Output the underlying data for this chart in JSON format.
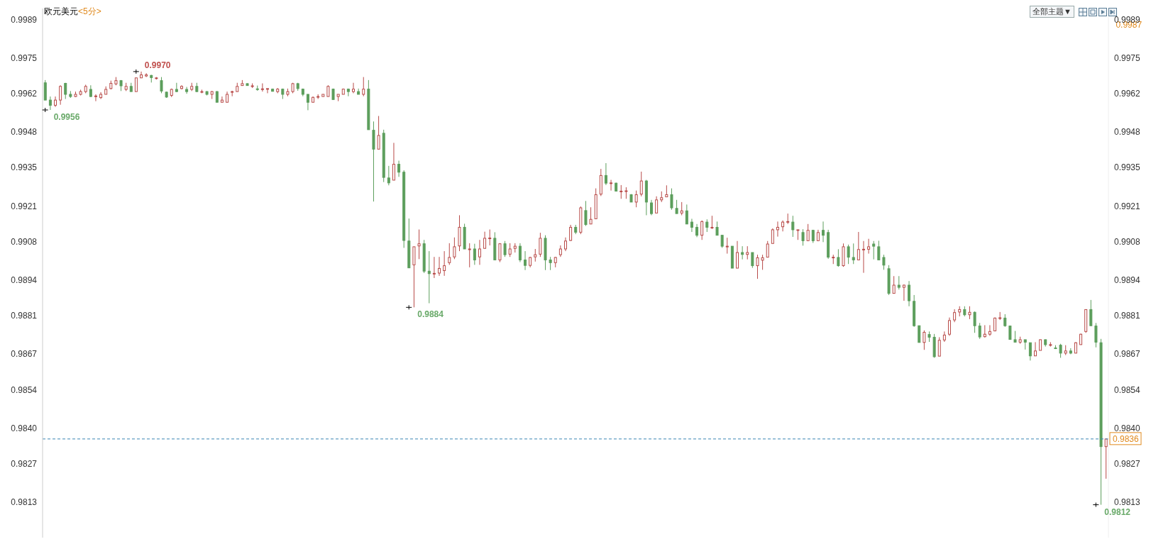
{
  "chart_data": {
    "type": "candlestick",
    "title": "欧元美元",
    "subtitle": "<5分>",
    "categories": [
      null,
      null,
      null,
      null,
      null,
      null,
      null,
      null,
      null,
      null,
      null,
      null,
      null,
      null,
      null,
      null,
      null,
      null,
      null,
      null,
      null,
      null,
      null,
      null,
      null,
      null,
      null,
      null,
      null,
      null,
      null,
      null,
      null,
      null,
      null,
      null,
      null,
      null,
      null,
      null,
      null,
      null,
      null,
      null,
      null,
      null,
      null,
      null,
      null,
      null,
      null,
      null,
      null,
      null,
      null,
      null,
      null,
      null,
      null,
      null,
      null,
      null,
      null,
      null,
      null,
      null,
      null,
      null,
      null,
      null,
      null,
      null,
      null,
      null,
      null,
      null,
      null,
      null,
      null,
      null,
      null,
      null,
      null,
      null,
      null,
      null,
      null,
      null,
      null,
      null,
      null,
      null,
      null,
      null,
      null,
      null,
      null,
      null,
      null,
      null,
      null,
      null,
      null,
      null,
      null,
      null,
      null,
      null,
      null,
      null,
      null,
      null,
      null,
      null,
      null,
      null,
      null,
      null,
      null,
      null,
      null,
      null,
      null,
      null,
      null,
      null,
      null,
      null,
      null,
      null,
      null,
      null,
      null,
      null,
      null,
      null,
      null,
      null,
      null,
      null,
      null,
      null,
      null,
      null,
      null,
      null,
      null,
      null,
      null,
      null,
      null,
      null,
      null,
      null,
      null,
      null,
      null,
      null,
      null,
      null,
      null,
      null,
      null,
      null,
      null,
      null,
      null,
      null,
      null,
      null,
      null,
      null,
      null,
      null,
      null,
      null,
      null,
      null,
      null,
      null,
      null,
      null,
      null,
      null,
      null,
      null,
      null,
      null,
      null,
      null,
      null,
      null,
      null,
      null,
      null,
      null,
      null,
      null,
      null,
      null,
      null,
      null,
      null,
      null,
      null,
      null,
      null,
      null,
      null,
      null,
      null
    ],
    "ohlc": [
      [
        0.99659,
        0.99669,
        0.99596,
        0.99596
      ],
      [
        0.99596,
        0.99609,
        0.9956,
        0.99577
      ],
      [
        0.99577,
        0.99609,
        0.99571,
        0.99596
      ],
      [
        0.99596,
        0.9965,
        0.99579,
        0.99646
      ],
      [
        0.99657,
        0.99659,
        0.996,
        0.99617
      ],
      [
        0.99617,
        0.99629,
        0.99604,
        0.99609
      ],
      [
        0.99609,
        0.99627,
        0.99607,
        0.99617
      ],
      [
        0.99617,
        0.99634,
        0.99613,
        0.99627
      ],
      [
        0.99627,
        0.99652,
        0.99621,
        0.99646
      ],
      [
        0.99635,
        0.9965,
        0.99607,
        0.99609
      ],
      [
        0.99609,
        0.99617,
        0.99592,
        0.99611
      ],
      [
        0.99605,
        0.99625,
        0.996,
        0.99617
      ],
      [
        0.99617,
        0.99646,
        0.99617,
        0.99635
      ],
      [
        0.99638,
        0.99667,
        0.99635,
        0.99657
      ],
      [
        0.99655,
        0.9968,
        0.9965,
        0.99667
      ],
      [
        0.99667,
        0.99669,
        0.99629,
        0.99648
      ],
      [
        0.99635,
        0.99659,
        0.99629,
        0.99646
      ],
      [
        0.99646,
        0.99659,
        0.99627,
        0.99627
      ],
      [
        0.99627,
        0.99677,
        0.99627,
        0.99677
      ],
      [
        0.99677,
        0.997,
        0.99677,
        0.99688
      ],
      [
        0.99684,
        0.99694,
        0.9968,
        0.99688
      ],
      [
        0.99686,
        0.99688,
        0.9966,
        0.99678
      ],
      [
        0.99675,
        0.9968,
        0.99671,
        0.99677
      ],
      [
        0.99667,
        0.9968,
        0.99621,
        0.99629
      ],
      [
        0.99625,
        0.99627,
        0.99604,
        0.99607
      ],
      [
        0.99613,
        0.99638,
        0.99607,
        0.99635
      ],
      [
        0.99635,
        0.99659,
        0.99625,
        0.99627
      ],
      [
        0.99638,
        0.9965,
        0.99635,
        0.99646
      ],
      [
        0.99635,
        0.99644,
        0.99619,
        0.99627
      ],
      [
        0.99635,
        0.99659,
        0.99629,
        0.99646
      ],
      [
        0.99646,
        0.99659,
        0.99625,
        0.99627
      ],
      [
        0.99625,
        0.99634,
        0.99621,
        0.99627
      ],
      [
        0.99627,
        0.99629,
        0.99613,
        0.99617
      ],
      [
        0.99617,
        0.99629,
        0.996,
        0.99627
      ],
      [
        0.99627,
        0.99629,
        0.99588,
        0.99588
      ],
      [
        0.99588,
        0.99609,
        0.99588,
        0.99596
      ],
      [
        0.99588,
        0.99627,
        0.99588,
        0.99617
      ],
      [
        0.99625,
        0.9963,
        0.9961,
        0.99627
      ],
      [
        0.99627,
        0.99659,
        0.99627,
        0.99646
      ],
      [
        0.99649,
        0.99669,
        0.99649,
        0.99656
      ],
      [
        0.99656,
        0.99657,
        0.99649,
        0.99649
      ],
      [
        0.99647,
        0.99657,
        0.9964,
        0.99648
      ],
      [
        0.99637,
        0.99649,
        0.9963,
        0.99636
      ],
      [
        0.99636,
        0.99657,
        0.99627,
        0.99637
      ],
      [
        0.99636,
        0.99638,
        0.99621,
        0.99638
      ],
      [
        0.99636,
        0.99638,
        0.99627,
        0.99628
      ],
      [
        0.99627,
        0.9964,
        0.99621,
        0.99636
      ],
      [
        0.99636,
        0.99638,
        0.996,
        0.99617
      ],
      [
        0.99617,
        0.99638,
        0.9961,
        0.99627
      ],
      [
        0.99627,
        0.99659,
        0.99621,
        0.99656
      ],
      [
        0.99656,
        0.99659,
        0.9963,
        0.99638
      ],
      [
        0.99636,
        0.99638,
        0.9961,
        0.99617
      ],
      [
        0.99617,
        0.99617,
        0.99559,
        0.99588
      ],
      [
        0.99588,
        0.99609,
        0.99588,
        0.99606
      ],
      [
        0.99607,
        0.99617,
        0.996,
        0.99609
      ],
      [
        0.99609,
        0.99617,
        0.99609,
        0.99617
      ],
      [
        0.99609,
        0.9965,
        0.99609,
        0.99646
      ],
      [
        0.99636,
        0.99638,
        0.99598,
        0.99598
      ],
      [
        0.99609,
        0.99617,
        0.99592,
        0.99617
      ],
      [
        0.99617,
        0.99638,
        0.99617,
        0.99636
      ],
      [
        0.99636,
        0.99638,
        0.9961,
        0.99627
      ],
      [
        0.99627,
        0.99659,
        0.99621,
        0.99636
      ],
      [
        0.99627,
        0.99638,
        0.99617,
        0.99617
      ],
      [
        0.99617,
        0.9968,
        0.9961,
        0.99636
      ],
      [
        0.99636,
        0.99669,
        0.99488,
        0.99488
      ],
      [
        0.99486,
        0.99518,
        0.99226,
        0.99417
      ],
      [
        0.99417,
        0.99538,
        0.99417,
        0.99467
      ],
      [
        0.99475,
        0.99488,
        0.99297,
        0.99314
      ],
      [
        0.99312,
        0.99356,
        0.99285,
        0.99294
      ],
      [
        0.99304,
        0.9944,
        0.99304,
        0.99362
      ],
      [
        0.99362,
        0.99375,
        0.99316,
        0.99333
      ],
      [
        0.99333,
        0.9934,
        0.99057,
        0.99084
      ],
      [
        0.99082,
        0.99164,
        0.98984,
        0.98984
      ],
      [
        0.98995,
        0.99061,
        0.9884,
        0.99061
      ],
      [
        0.99064,
        0.99124,
        0.99016,
        0.99072
      ],
      [
        0.99072,
        0.99086,
        0.98965,
        0.98972
      ],
      [
        0.98972,
        0.99045,
        0.98855,
        0.98963
      ],
      [
        0.98962,
        0.99024,
        0.98947,
        0.98964
      ],
      [
        0.98965,
        0.99024,
        0.98955,
        0.98982
      ],
      [
        0.98974,
        0.99045,
        0.98955,
        0.98992
      ],
      [
        0.99003,
        0.99074,
        0.98995,
        0.99022
      ],
      [
        0.99024,
        0.99095,
        0.99016,
        0.99061
      ],
      [
        0.99064,
        0.99176,
        0.99045,
        0.99132
      ],
      [
        0.99132,
        0.99145,
        0.99053,
        0.99053
      ],
      [
        0.99052,
        0.99074,
        0.98986,
        0.99053
      ],
      [
        0.99053,
        0.99072,
        0.98995,
        0.99013
      ],
      [
        0.99024,
        0.99086,
        0.98995,
        0.99053
      ],
      [
        0.99055,
        0.99116,
        0.99055,
        0.99092
      ],
      [
        0.99092,
        0.99124,
        0.99066,
        0.99093
      ],
      [
        0.99092,
        0.99114,
        0.99013,
        0.99013
      ],
      [
        0.99013,
        0.99074,
        0.99005,
        0.99072
      ],
      [
        0.99072,
        0.99082,
        0.99024,
        0.99032
      ],
      [
        0.99034,
        0.99074,
        0.99024,
        0.99053
      ],
      [
        0.99055,
        0.99074,
        0.9904,
        0.99063
      ],
      [
        0.99063,
        0.99074,
        0.99005,
        0.99013
      ],
      [
        0.99013,
        0.99045,
        0.98976,
        0.98993
      ],
      [
        0.98993,
        0.99024,
        0.98986,
        0.99022
      ],
      [
        0.99024,
        0.99053,
        0.99007,
        0.99032
      ],
      [
        0.99034,
        0.99112,
        0.99024,
        0.99092
      ],
      [
        0.99092,
        0.99103,
        0.98976,
        0.99013
      ],
      [
        0.99013,
        0.99024,
        0.98976,
        0.99003
      ],
      [
        0.99003,
        0.99024,
        0.98986,
        0.99022
      ],
      [
        0.99032,
        0.99066,
        0.99024,
        0.99053
      ],
      [
        0.99053,
        0.99095,
        0.99045,
        0.99082
      ],
      [
        0.99084,
        0.99141,
        0.99082,
        0.99132
      ],
      [
        0.99132,
        0.99141,
        0.99107,
        0.99114
      ],
      [
        0.99114,
        0.99208,
        0.99107,
        0.99203
      ],
      [
        0.99193,
        0.99228,
        0.99137,
        0.99142
      ],
      [
        0.99144,
        0.99205,
        0.99144,
        0.99161
      ],
      [
        0.99163,
        0.99274,
        0.99163,
        0.99251
      ],
      [
        0.99253,
        0.99345,
        0.99246,
        0.99321
      ],
      [
        0.99321,
        0.99366,
        0.99286,
        0.99293
      ],
      [
        0.99292,
        0.99305,
        0.99266,
        0.99294
      ],
      [
        0.99293,
        0.99295,
        0.99264,
        0.99264
      ],
      [
        0.99263,
        0.99286,
        0.99236,
        0.99264
      ],
      [
        0.99263,
        0.99278,
        0.99236,
        0.99265
      ],
      [
        0.99251,
        0.99253,
        0.99224,
        0.99224
      ],
      [
        0.99224,
        0.99266,
        0.99205,
        0.99251
      ],
      [
        0.99253,
        0.99335,
        0.99245,
        0.99301
      ],
      [
        0.99301,
        0.99305,
        0.99176,
        0.99224
      ],
      [
        0.99221,
        0.99232,
        0.99176,
        0.99182
      ],
      [
        0.99184,
        0.99245,
        0.99184,
        0.99232
      ],
      [
        0.99232,
        0.99263,
        0.99224,
        0.9924
      ],
      [
        0.99243,
        0.99285,
        0.99243,
        0.99251
      ],
      [
        0.99251,
        0.99274,
        0.99196,
        0.99203
      ],
      [
        0.99201,
        0.99232,
        0.99182,
        0.99182
      ],
      [
        0.99184,
        0.99224,
        0.99176,
        0.99192
      ],
      [
        0.99192,
        0.99215,
        0.99144,
        0.99144
      ],
      [
        0.99151,
        0.99163,
        0.99115,
        0.99132
      ],
      [
        0.99132,
        0.99144,
        0.99096,
        0.99103
      ],
      [
        0.99103,
        0.99157,
        0.99086,
        0.99153
      ],
      [
        0.99151,
        0.99161,
        0.99115,
        0.99132
      ],
      [
        0.99131,
        0.99174,
        0.99126,
        0.99132
      ],
      [
        0.99132,
        0.99153,
        0.99103,
        0.99103
      ],
      [
        0.99103,
        0.99103,
        0.99057,
        0.99063
      ],
      [
        0.99062,
        0.99094,
        0.99036,
        0.99063
      ],
      [
        0.99063,
        0.99063,
        0.98983,
        0.98983
      ],
      [
        0.98983,
        0.99082,
        0.98983,
        0.9904
      ],
      [
        0.9904,
        0.99063,
        0.99015,
        0.99033
      ],
      [
        0.99033,
        0.99063,
        0.99015,
        0.9904
      ],
      [
        0.9904,
        0.9904,
        0.98984,
        0.98992
      ],
      [
        0.98992,
        0.99032,
        0.98944,
        0.99021
      ],
      [
        0.99012,
        0.99032,
        0.98977,
        0.99021
      ],
      [
        0.99023,
        0.99082,
        0.99023,
        0.99071
      ],
      [
        0.99073,
        0.99128,
        0.99073,
        0.99123
      ],
      [
        0.99123,
        0.99153,
        0.99098,
        0.99132
      ],
      [
        0.99134,
        0.99157,
        0.99117,
        0.99151
      ],
      [
        0.99152,
        0.99182,
        0.99144,
        0.99153
      ],
      [
        0.99151,
        0.99174,
        0.99097,
        0.99123
      ],
      [
        0.99122,
        0.99123,
        0.99086,
        0.99123
      ],
      [
        0.99113,
        0.99125,
        0.99065,
        0.99083
      ],
      [
        0.99083,
        0.99144,
        0.99083,
        0.99121
      ],
      [
        0.99121,
        0.99123,
        0.99075,
        0.99083
      ],
      [
        0.99083,
        0.99123,
        0.99083,
        0.99113
      ],
      [
        0.99121,
        0.99153,
        0.99078,
        0.99103
      ],
      [
        0.99113,
        0.99123,
        0.99017,
        0.99023
      ],
      [
        0.99022,
        0.99032,
        0.98998,
        0.99023
      ],
      [
        0.99022,
        0.99052,
        0.98988,
        0.98992
      ],
      [
        0.98992,
        0.99073,
        0.98988,
        0.99061
      ],
      [
        0.99061,
        0.99069,
        0.98998,
        0.99023
      ],
      [
        0.99022,
        0.99073,
        0.98998,
        0.99013
      ],
      [
        0.99013,
        0.99115,
        0.99013,
        0.99051
      ],
      [
        0.99051,
        0.99082,
        0.98966,
        0.99052
      ],
      [
        0.99052,
        0.9909,
        0.99036,
        0.99061
      ],
      [
        0.99071,
        0.99082,
        0.99015,
        0.99063
      ],
      [
        0.99061,
        0.99083,
        0.99013,
        0.99013
      ],
      [
        0.99022,
        0.99032,
        0.98977,
        0.98994
      ],
      [
        0.98981,
        0.98994,
        0.98885,
        0.98891
      ],
      [
        0.98891,
        0.98954,
        0.98891,
        0.98921
      ],
      [
        0.98921,
        0.98954,
        0.98905,
        0.98913
      ],
      [
        0.98913,
        0.98923,
        0.98864,
        0.98921
      ],
      [
        0.98921,
        0.98936,
        0.98844,
        0.98864
      ],
      [
        0.98862,
        0.98885,
        0.98769,
        0.98773
      ],
      [
        0.98773,
        0.98773,
        0.98712,
        0.98712
      ],
      [
        0.98712,
        0.98756,
        0.98685,
        0.98749
      ],
      [
        0.98741,
        0.98752,
        0.98714,
        0.98731
      ],
      [
        0.98731,
        0.98743,
        0.98656,
        0.9866
      ],
      [
        0.98662,
        0.98731,
        0.98662,
        0.9872
      ],
      [
        0.98721,
        0.98752,
        0.98714,
        0.98739
      ],
      [
        0.98742,
        0.98803,
        0.98736,
        0.98792
      ],
      [
        0.98794,
        0.98833,
        0.98786,
        0.98821
      ],
      [
        0.98823,
        0.98844,
        0.98807,
        0.98832
      ],
      [
        0.98832,
        0.98844,
        0.98807,
        0.98813
      ],
      [
        0.98813,
        0.98844,
        0.98797,
        0.98822
      ],
      [
        0.98822,
        0.98825,
        0.98747,
        0.98773
      ],
      [
        0.98772,
        0.98783,
        0.98725,
        0.98732
      ],
      [
        0.98733,
        0.98775,
        0.9873,
        0.98742
      ],
      [
        0.98742,
        0.98775,
        0.98736,
        0.98752
      ],
      [
        0.98754,
        0.98803,
        0.98754,
        0.98801
      ],
      [
        0.98801,
        0.98823,
        0.98794,
        0.98802
      ],
      [
        0.98801,
        0.98815,
        0.98769,
        0.98773
      ],
      [
        0.98772,
        0.98773,
        0.98722,
        0.98723
      ],
      [
        0.98722,
        0.98754,
        0.98713,
        0.98713
      ],
      [
        0.98713,
        0.98733,
        0.98707,
        0.98722
      ],
      [
        0.98722,
        0.98722,
        0.98686,
        0.98713
      ],
      [
        0.98711,
        0.98711,
        0.98646,
        0.98663
      ],
      [
        0.98663,
        0.98713,
        0.98663,
        0.98681
      ],
      [
        0.98683,
        0.98723,
        0.98683,
        0.98722
      ],
      [
        0.98722,
        0.98723,
        0.98697,
        0.98704
      ],
      [
        0.98703,
        0.98713,
        0.98697,
        0.98704
      ],
      [
        0.98692,
        0.98702,
        0.98688,
        0.98691
      ],
      [
        0.98702,
        0.98707,
        0.98656,
        0.98673
      ],
      [
        0.98673,
        0.98702,
        0.98666,
        0.98681
      ],
      [
        0.98681,
        0.98691,
        0.98669,
        0.98673
      ],
      [
        0.98673,
        0.98713,
        0.98673,
        0.98711
      ],
      [
        0.98704,
        0.98744,
        0.98704,
        0.98742
      ],
      [
        0.98752,
        0.98833,
        0.98747,
        0.98832
      ],
      [
        0.98832,
        0.98867,
        0.98773,
        0.98773
      ],
      [
        0.98772,
        0.98783,
        0.98694,
        0.98713
      ],
      [
        0.98711,
        0.98725,
        0.9812,
        0.98332
      ],
      [
        0.98332,
        0.9836,
        0.98215,
        0.9836
      ]
    ],
    "colors": [
      "#5c9e5c",
      "#5c9e5c",
      "#b84a48",
      "#b84a48",
      "#5c9e5c",
      "#5c9e5c",
      "#b84a48",
      "#b84a48",
      "#b84a48",
      "#5c9e5c",
      "#b84a48",
      "#b84a48",
      "#b84a48",
      "#b84a48",
      "#b84a48",
      "#5c9e5c",
      "#b84a48",
      "#5c9e5c",
      "#b84a48",
      "#b84a48",
      "#b84a48",
      "#5c9e5c",
      "#b84a48",
      "#5c9e5c",
      "#5c9e5c",
      "#b84a48",
      "#5c9e5c",
      "#b84a48",
      "#5c9e5c",
      "#b84a48",
      "#5c9e5c",
      "#b84a48",
      "#5c9e5c",
      "#b84a48",
      "#5c9e5c",
      "#b84a48",
      "#b84a48",
      "#b84a48",
      "#b84a48",
      "#b84a48",
      "#5c9e5c",
      "#b84a48",
      "#5c9e5c",
      "#b84a48",
      "#b84a48",
      "#5c9e5c",
      "#b84a48",
      "#5c9e5c",
      "#b84a48",
      "#b84a48",
      "#5c9e5c",
      "#5c9e5c",
      "#5c9e5c",
      "#b84a48",
      "#b84a48",
      "#b84a48",
      "#b84a48",
      "#5c9e5c",
      "#b84a48",
      "#b84a48",
      "#5c9e5c",
      "#b84a48",
      "#5c9e5c",
      "#b84a48",
      "#5c9e5c",
      "#5c9e5c",
      "#b84a48",
      "#5c9e5c",
      "#5c9e5c",
      "#b84a48",
      "#5c9e5c",
      "#5c9e5c",
      "#5c9e5c",
      "#b84a48",
      "#b84a48",
      "#5c9e5c",
      "#5c9e5c",
      "#b84a48",
      "#b84a48",
      "#b84a48",
      "#b84a48",
      "#b84a48",
      "#b84a48",
      "#5c9e5c",
      "#b84a48",
      "#5c9e5c",
      "#b84a48",
      "#b84a48",
      "#b84a48",
      "#5c9e5c",
      "#b84a48",
      "#5c9e5c",
      "#b84a48",
      "#b84a48",
      "#5c9e5c",
      "#5c9e5c",
      "#b84a48",
      "#b84a48",
      "#b84a48",
      "#5c9e5c",
      "#5c9e5c",
      "#b84a48",
      "#b84a48",
      "#b84a48",
      "#b84a48",
      "#5c9e5c",
      "#b84a48",
      "#5c9e5c",
      "#b84a48",
      "#b84a48",
      "#b84a48",
      "#5c9e5c",
      "#b84a48",
      "#5c9e5c",
      "#b84a48",
      "#b84a48",
      "#5c9e5c",
      "#b84a48",
      "#b84a48",
      "#5c9e5c",
      "#5c9e5c",
      "#b84a48",
      "#b84a48",
      "#b84a48",
      "#5c9e5c",
      "#5c9e5c",
      "#b84a48",
      "#5c9e5c",
      "#5c9e5c",
      "#5c9e5c",
      "#b84a48",
      "#5c9e5c",
      "#b84a48",
      "#5c9e5c",
      "#5c9e5c",
      "#b84a48",
      "#5c9e5c",
      "#b84a48",
      "#5c9e5c",
      "#b84a48",
      "#5c9e5c",
      "#b84a48",
      "#b84a48",
      "#b84a48",
      "#b84a48",
      "#b84a48",
      "#b84a48",
      "#b84a48",
      "#5c9e5c",
      "#b84a48",
      "#5c9e5c",
      "#b84a48",
      "#5c9e5c",
      "#b84a48",
      "#5c9e5c",
      "#5c9e5c",
      "#b84a48",
      "#5c9e5c",
      "#b84a48",
      "#5c9e5c",
      "#5c9e5c",
      "#b84a48",
      "#b84a48",
      "#b84a48",
      "#5c9e5c",
      "#5c9e5c",
      "#5c9e5c",
      "#5c9e5c",
      "#b84a48",
      "#5c9e5c",
      "#b84a48",
      "#5c9e5c",
      "#5c9e5c",
      "#5c9e5c",
      "#b84a48",
      "#5c9e5c",
      "#5c9e5c",
      "#b84a48",
      "#b84a48",
      "#b84a48",
      "#b84a48",
      "#b84a48",
      "#5c9e5c",
      "#b84a48",
      "#5c9e5c",
      "#5c9e5c",
      "#b84a48",
      "#b84a48",
      "#b84a48",
      "#b84a48",
      "#5c9e5c",
      "#5c9e5c",
      "#5c9e5c",
      "#b84a48",
      "#5c9e5c",
      "#5c9e5c",
      "#b84a48",
      "#b84a48",
      "#5c9e5c",
      "#b84a48",
      "#5c9e5c",
      "#5c9e5c",
      "#b84a48",
      "#5c9e5c",
      "#b84a48",
      "#b84a48",
      "#b84a48",
      "#5c9e5c",
      "#5c9e5c",
      "#5c9e5c",
      "#b84a48"
    ],
    "ylim": [
      0.98,
      0.9993
    ],
    "yticks": [
      0.9813,
      0.9827,
      {
        "value": 0.984,
        "label": "0.9840"
      },
      0.9854,
      0.9867,
      0.9881,
      0.9894,
      0.9908,
      0.9921,
      0.9935,
      0.9948,
      0.9962,
      0.9975,
      0.9989
    ],
    "y2lim": [
      0.98,
      0.9993
    ],
    "y2ticks": [
      0.9813,
      0.9827,
      {
        "value": 0.984,
        "label": "0.9840"
      },
      0.9854,
      0.9867,
      0.9881,
      0.9894,
      0.9908,
      0.9921,
      0.9935,
      0.9948,
      0.9962,
      0.9975,
      0.9989
    ],
    "tick_labels": "y",
    "ref_lines": [
      {
        "axis": "y2",
        "value": 0.9836,
        "label": "0.9836",
        "color": "#3a86b4",
        "line_style": "dashed"
      }
    ],
    "annotations": [
      "全部主题▼",
      "0.9970",
      "0.9956",
      "0.9884",
      "0.9812",
      "0.9987"
    ]
  }
}
